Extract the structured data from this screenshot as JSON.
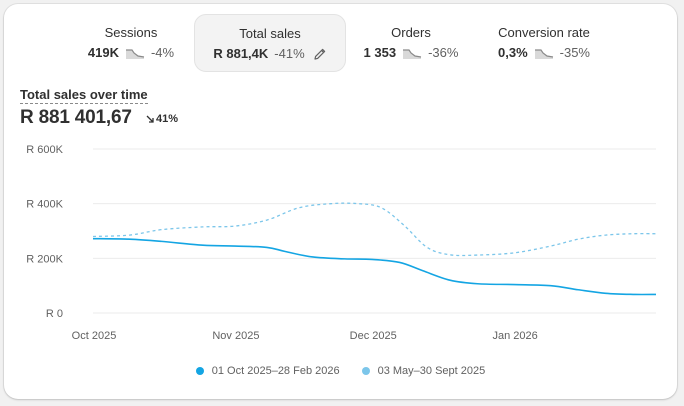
{
  "colors": {
    "current": "#14a5e3",
    "previous": "#7cc6ea",
    "grid": "#ebebeb",
    "negative_spark": "#8a8a8a"
  },
  "metrics": [
    {
      "label": "Sessions",
      "value": "419K",
      "change": "-4%",
      "trend_icon": "trend-down-icon"
    },
    {
      "label": "Total sales",
      "value": "R 881,4K",
      "change": "-41%",
      "trend_icon": "trend-down-icon",
      "selected": true,
      "action_icon": "pencil-icon"
    },
    {
      "label": "Orders",
      "value": "1 353",
      "change": "-36%",
      "trend_icon": "trend-down-icon"
    },
    {
      "label": "Conversion rate",
      "value": "0,3%",
      "change": "-35%",
      "trend_icon": "trend-down-icon"
    }
  ],
  "chart_header": {
    "title": "Total sales over time",
    "value": "R 881 401,67",
    "change": "41%",
    "change_icon": "arrow-down-right-icon"
  },
  "chart_data": {
    "type": "line",
    "y_tick_labels": [
      "R 600K",
      "R 400K",
      "R 200K",
      "R 0"
    ],
    "y_ticks": [
      600000,
      400000,
      200000,
      0
    ],
    "ylim": [
      0,
      600000
    ],
    "x_tick_labels": [
      "Oct 2025",
      "Nov 2025",
      "Dec 2025",
      "Jan 2026"
    ],
    "x_ticks": [
      0,
      31,
      61,
      92
    ],
    "xlim": [
      0,
      123
    ],
    "grid": true,
    "legend_position": "bottom",
    "series": [
      {
        "name": "01 Oct 2025–28 Feb 2026",
        "style": "solid",
        "x": [
          0,
          8,
          15,
          24,
          31,
          38,
          42,
          48,
          55,
          61,
          67,
          72,
          78,
          84,
          92,
          100,
          106,
          112,
          118,
          123
        ],
        "y": [
          272000,
          270000,
          262000,
          248000,
          245000,
          240000,
          225000,
          205000,
          198000,
          196000,
          185000,
          155000,
          120000,
          107000,
          104000,
          100000,
          85000,
          72000,
          68000,
          68000
        ]
      },
      {
        "name": "03 May–30 Sept 2025",
        "style": "dashed",
        "x": [
          0,
          8,
          15,
          24,
          31,
          38,
          45,
          52,
          58,
          63,
          68,
          73,
          78,
          84,
          92,
          100,
          106,
          112,
          118,
          123
        ],
        "y": [
          280000,
          285000,
          305000,
          315000,
          318000,
          340000,
          385000,
          400000,
          400000,
          385000,
          320000,
          240000,
          213000,
          212000,
          220000,
          245000,
          270000,
          285000,
          290000,
          290000
        ]
      }
    ]
  },
  "legend": [
    {
      "label": "01 Oct 2025–28 Feb 2026"
    },
    {
      "label": "03 May–30 Sept 2025"
    }
  ]
}
